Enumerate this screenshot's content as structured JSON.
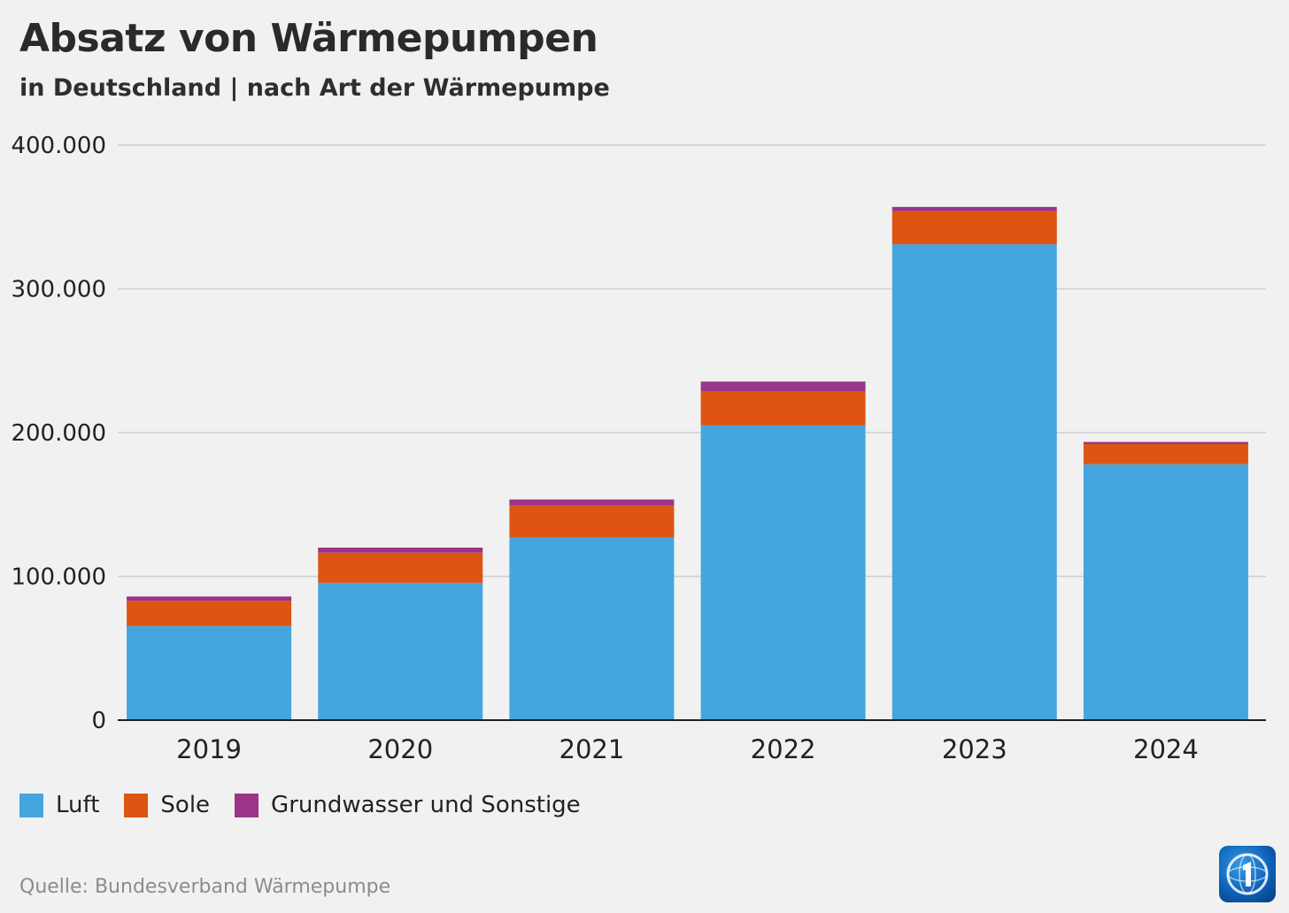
{
  "header": {
    "title": "Absatz von Wärmepumpen",
    "subtitle": "in Deutschland | nach Art der Wärmepumpe"
  },
  "chart_data": {
    "type": "bar",
    "stacked": true,
    "categories": [
      "2019",
      "2020",
      "2021",
      "2022",
      "2023",
      "2024"
    ],
    "series": [
      {
        "name": "Luft",
        "color": "#45a5de",
        "values": [
          65500,
          95500,
          127000,
          205000,
          331000,
          178000
        ]
      },
      {
        "name": "Sole",
        "color": "#dd5511",
        "values": [
          17500,
          21000,
          22500,
          23500,
          23000,
          14000
        ]
      },
      {
        "name": "Grundwasser und Sonstige",
        "color": "#9c3487",
        "values": [
          3000,
          3500,
          4000,
          7000,
          3000,
          1500
        ]
      }
    ],
    "ylim": [
      0,
      400000
    ],
    "yticks": [
      0,
      100000,
      200000,
      300000,
      400000
    ],
    "ytick_labels": [
      "0",
      "100.000",
      "200.000",
      "300.000",
      "400.000"
    ],
    "grid": true,
    "legend_position": "bottom-left"
  },
  "footer": {
    "source": "Quelle: Bundesverband Wärmepumpe",
    "logo_icon": "tagesschau-logo-icon"
  }
}
